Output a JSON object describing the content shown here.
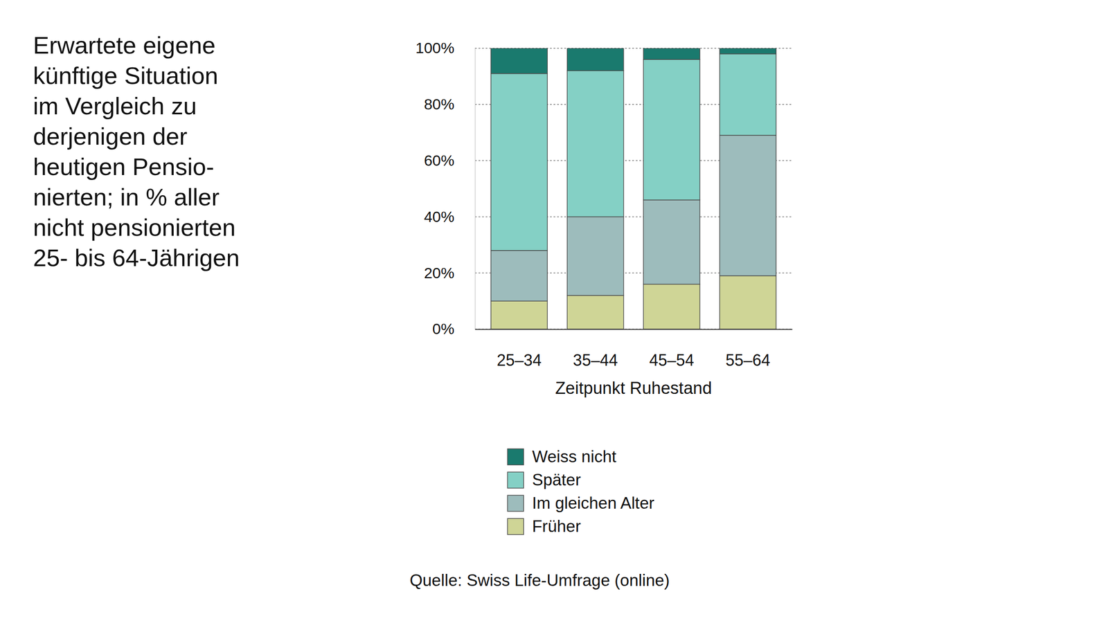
{
  "chart_data": {
    "type": "bar",
    "stacked": true,
    "title": "Erwartete eigene\nkünftige Situation\nim Vergleich zu\nderjenigen der\nheutigen Pensio-\nnierten; in % aller\nnicht pensionierten\n25- bis 64-Jährigen",
    "x_label": "Zeitpunkt Ruhestand",
    "source": "Quelle: Swiss Life-Umfrage (online)",
    "categories": [
      "25–34",
      "35–44",
      "45–54",
      "55–64"
    ],
    "series": [
      {
        "name": "Früher",
        "color": "#cfd596",
        "values": [
          10,
          12,
          16,
          19
        ]
      },
      {
        "name": "Im gleichen Alter",
        "color": "#9dbcbc",
        "values": [
          18,
          28,
          30,
          50
        ]
      },
      {
        "name": "Später",
        "color": "#84d0c5",
        "values": [
          63,
          52,
          50,
          29
        ]
      },
      {
        "name": "Weiss nicht",
        "color": "#1a7a6e",
        "values": [
          9,
          8,
          4,
          2
        ]
      }
    ],
    "ylim": [
      0,
      100
    ],
    "yticks": [
      {
        "value": 0,
        "label": "0%"
      },
      {
        "value": 20,
        "label": "20%"
      },
      {
        "value": 40,
        "label": "40%"
      },
      {
        "value": 60,
        "label": "60%"
      },
      {
        "value": 80,
        "label": "80%"
      },
      {
        "value": 100,
        "label": "100%"
      }
    ],
    "grid": true,
    "legend": "bottom"
  }
}
